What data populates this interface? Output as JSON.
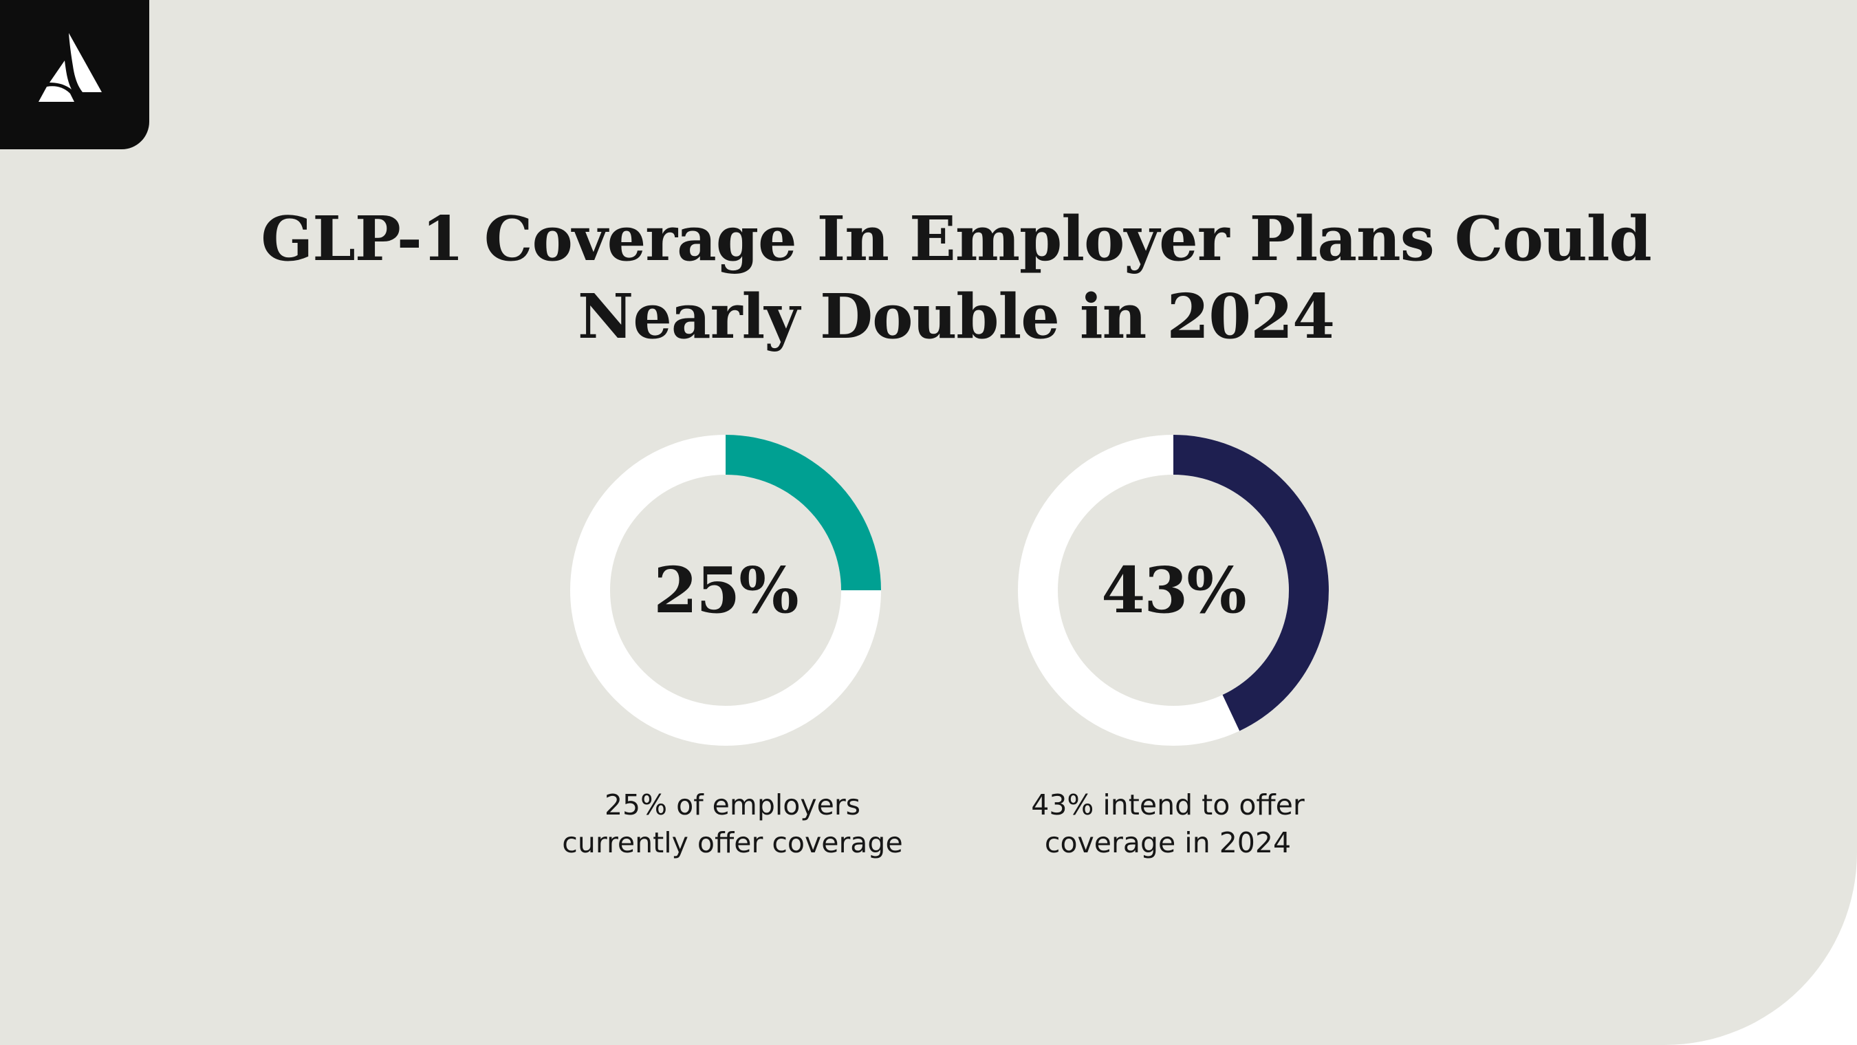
{
  "brand": {
    "logo_icon": "leaf-triangle-logo",
    "logo_bg": "#0d0d0d",
    "logo_fg": "#ffffff"
  },
  "colors": {
    "background": "#e5e5df",
    "track": "#ffffff",
    "teal": "#00a092",
    "navy": "#1e1f50",
    "text": "#161616"
  },
  "chart_data": {
    "type": "pie",
    "title": "GLP-1 Coverage In Employer Plans Could Nearly Double in 2024",
    "title_lines": [
      "GLP-1 Coverage In Employer Plans Could",
      "Nearly Double in 2024"
    ],
    "charts": [
      {
        "value": 25,
        "value_label": "25%",
        "color": "#00a092",
        "caption_lines": [
          "25% of employers",
          "currently offer coverage"
        ]
      },
      {
        "value": 43,
        "value_label": "43%",
        "color": "#1e1f50",
        "caption_lines": [
          "43% intend to offer",
          "coverage in 2024"
        ]
      }
    ]
  }
}
